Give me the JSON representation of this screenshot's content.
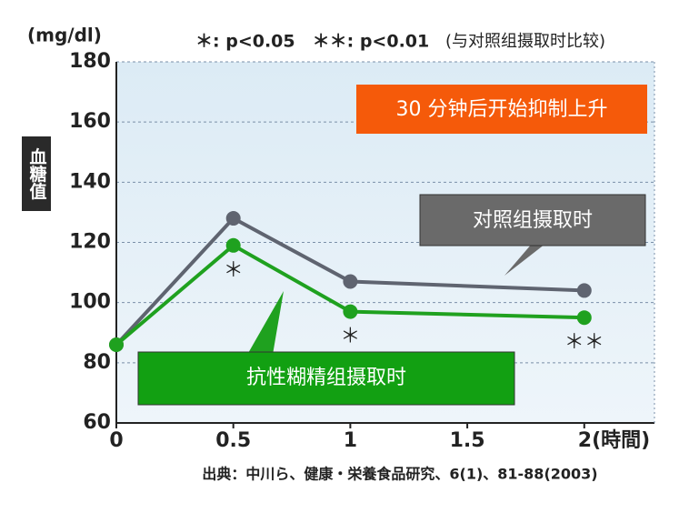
{
  "chart_data": {
    "type": "line",
    "y_unit": "(mg/dl)",
    "y_label": "血糖值",
    "significance_note": "＊: p<0.05　＊＊: p<0.01",
    "comparison_note": "(与对照组摄取时比较)",
    "annotation": "30 分钟后开始抑制上升",
    "source": "出典：中川ら、健康・栄養食品研究、6(1)、81-88(2003)",
    "x": [
      0,
      0.5,
      1,
      2
    ],
    "xlim": [
      0,
      2.3
    ],
    "xticks": [
      0,
      0.5,
      1,
      1.5,
      {
        "value": 2,
        "label": "2(時間)"
      }
    ],
    "ylim": [
      60,
      180
    ],
    "yticks": [
      60,
      80,
      100,
      120,
      140,
      160,
      180
    ],
    "grid": true,
    "series": [
      {
        "name": "对照组摄取时",
        "color": "#5f6470",
        "values": [
          86,
          128,
          107,
          104
        ]
      },
      {
        "name": "抗性糊精组摄取时",
        "color": "#1fa11f",
        "values": [
          86,
          119,
          97,
          95
        ],
        "significance": [
          null,
          "＊",
          "＊",
          "＊＊"
        ]
      }
    ]
  }
}
